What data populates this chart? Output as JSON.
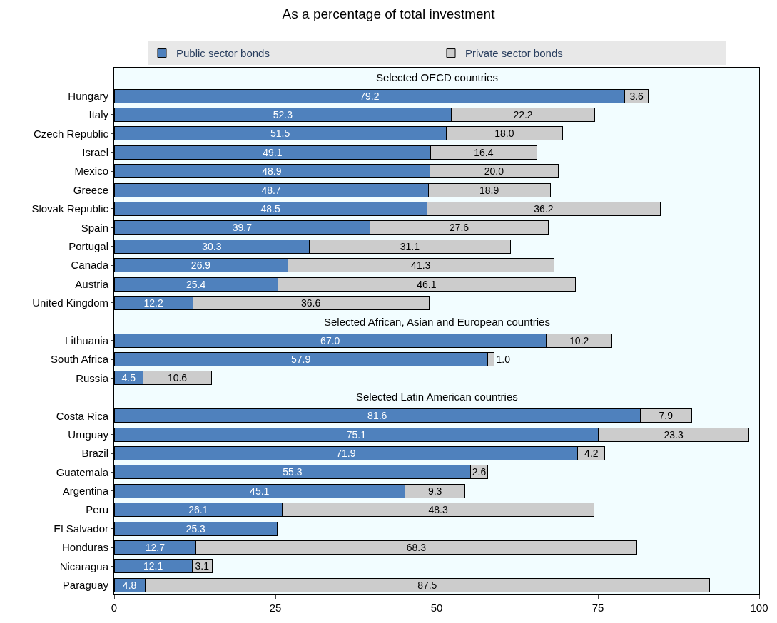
{
  "chart_data": {
    "type": "bar",
    "orientation": "horizontal",
    "stacked": true,
    "title": "As a percentage of total investment",
    "categories": [
      null,
      "Hungary",
      "Italy",
      "Czech Republic",
      "Israel",
      "Mexico",
      "Greece",
      "Slovak Republic",
      "Spain",
      "Portugal",
      "Canada",
      "Austria",
      "United Kingdom",
      null,
      "Lithuania",
      "South Africa",
      "Russia",
      null,
      "Costa Rica",
      "Uruguay",
      "Brazil",
      "Guatemala",
      "Argentina",
      "Peru",
      "El Salvador",
      "Honduras",
      "Nicaragua",
      "Paraguay"
    ],
    "series": [
      {
        "name": "Public sector bonds",
        "color": "#4f81bd",
        "values": [
          null,
          79.2,
          52.3,
          51.5,
          49.1,
          48.9,
          48.7,
          48.5,
          39.7,
          30.3,
          26.9,
          25.4,
          12.2,
          null,
          67.0,
          57.9,
          4.5,
          null,
          81.6,
          75.1,
          71.9,
          55.3,
          45.1,
          26.1,
          25.3,
          12.7,
          12.1,
          4.8
        ],
        "value_labels": [
          null,
          "79.2",
          "52.3",
          "51.5",
          "49.1",
          "48.9",
          "48.7",
          "48.5",
          "39.7",
          "30.3",
          "26.9",
          "25.4",
          "12.2",
          null,
          "67.0",
          "57.9",
          "4.5",
          null,
          "81.6",
          "75.1",
          "71.9",
          "55.3",
          "45.1",
          "26.1",
          "25.3",
          "12.7",
          "12.1",
          "4.8"
        ]
      },
      {
        "name": "Private sector bonds",
        "color": "#cccccc",
        "values": [
          null,
          3.6,
          22.2,
          18.0,
          16.4,
          20.0,
          18.9,
          36.2,
          27.6,
          31.1,
          41.3,
          46.1,
          36.6,
          null,
          10.2,
          1.0,
          10.6,
          null,
          7.9,
          23.3,
          4.2,
          2.6,
          9.3,
          48.3,
          null,
          68.3,
          3.1,
          87.5
        ],
        "value_labels": [
          null,
          "3.6",
          "22.2",
          "18.0",
          "16.4",
          "20.0",
          "18.9",
          "36.2",
          "27.6",
          "31.1",
          "41.3",
          "46.1",
          "36.6",
          null,
          "10.2",
          "1.0",
          "10.6",
          null,
          "7.9",
          "23.3",
          "4.2",
          "2.6",
          "9.3",
          "48.3",
          null,
          "68.3",
          "3.1",
          "87.5"
        ]
      }
    ],
    "annotations": [
      "Selected OECD countries",
      "Selected African, Asian and European countries",
      "Selected Latin American countries"
    ],
    "xlim": [
      0,
      100
    ],
    "xticks": [
      0,
      25,
      50,
      75,
      100
    ],
    "legend": "top",
    "grid": false
  }
}
